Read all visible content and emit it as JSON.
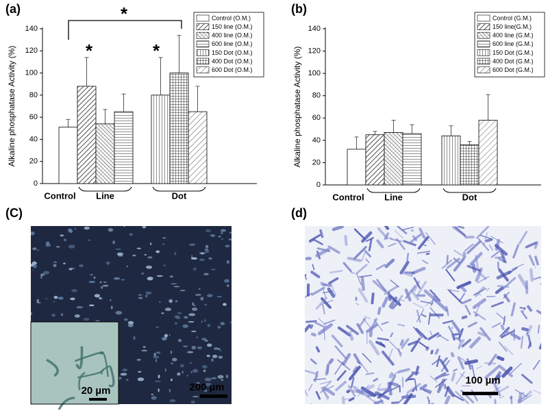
{
  "chart_data": [
    {
      "type": "bar",
      "panel": "(a)",
      "ylabel": "Alkaline phosphatase Activity (%)",
      "categories": [
        "Control (O.M.)",
        "150 line (O.M.)",
        "400 line (O.M.)",
        "600 line (O.M.)",
        "150 Dot (O.M.)",
        "400 Dot (O.M.)",
        "600 Dot (O.M.)"
      ],
      "values": [
        51,
        88,
        54,
        65,
        80,
        100,
        65
      ],
      "errors": [
        7,
        26,
        13,
        16,
        34,
        34,
        23
      ],
      "groups": [
        {
          "label": "Control",
          "members": [
            0
          ]
        },
        {
          "label": "Line",
          "members": [
            1,
            2,
            3
          ]
        },
        {
          "label": "Dot",
          "members": [
            4,
            5,
            6
          ]
        }
      ],
      "annotations": [
        {
          "text": "*"
        },
        {
          "text": "*"
        },
        {
          "text": "*"
        }
      ],
      "ylim": [
        0,
        140
      ],
      "yticks": [
        0,
        20,
        40,
        60,
        80,
        100,
        120,
        140
      ],
      "legend": "upper right"
    },
    {
      "type": "bar",
      "panel": "(b)",
      "ylabel": "Alkaline phosphatase Activity (%)",
      "categories": [
        "Control (G.M.)",
        "150 line(G.M.)",
        "400 line (G.M.)",
        "600 line (G.M.)",
        "150 Dot (G.M.)",
        "400 Dot (G.M.)",
        "600 Dot (G.M.)"
      ],
      "values": [
        32,
        45,
        47,
        46,
        44,
        36,
        58
      ],
      "errors": [
        11,
        3,
        11,
        8,
        9,
        3,
        23
      ],
      "groups": [
        {
          "label": "Control",
          "members": [
            0
          ]
        },
        {
          "label": "Line",
          "members": [
            1,
            2,
            3
          ]
        },
        {
          "label": "Dot",
          "members": [
            4,
            5,
            6
          ]
        }
      ],
      "ylim": [
        0,
        140
      ],
      "yticks": [
        0,
        20,
        40,
        60,
        80,
        100,
        120,
        140
      ],
      "legend": "upper right"
    }
  ],
  "images": [
    {
      "panel": "(C)",
      "scale_bar": "200 µm",
      "inset_scale_bar": "20 µm"
    },
    {
      "panel": "(d)",
      "scale_bar": "100 µm"
    }
  ]
}
